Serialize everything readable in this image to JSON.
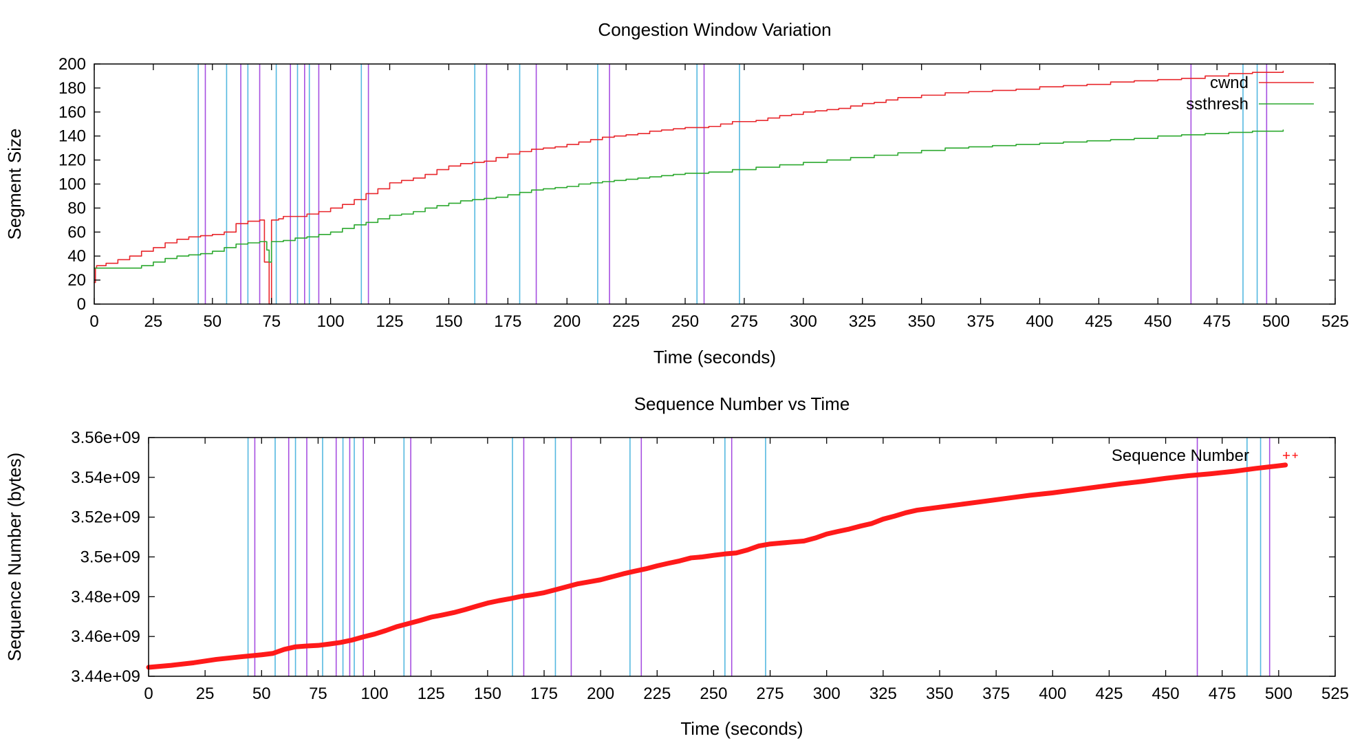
{
  "chart_data": [
    {
      "type": "line",
      "title": "Congestion Window Variation",
      "xlabel": "Time (seconds)",
      "ylabel": "Segment Size",
      "xlim": [
        0,
        525
      ],
      "ylim": [
        0,
        200
      ],
      "xticks": [
        "0",
        "25",
        "50",
        "75",
        "100",
        "125",
        "150",
        "175",
        "200",
        "225",
        "250",
        "275",
        "300",
        "325",
        "350",
        "375",
        "400",
        "425",
        "450",
        "475",
        "500",
        "525"
      ],
      "yticks": [
        "0",
        "20",
        "40",
        "60",
        "80",
        "100",
        "120",
        "140",
        "160",
        "180",
        "200"
      ],
      "grid": false,
      "legend_position": "top-right",
      "series": [
        {
          "name": "cwnd",
          "color": "#e8262b",
          "x": [
            0,
            0.5,
            1,
            5,
            10,
            15,
            20,
            25,
            30,
            35,
            40,
            45,
            50,
            55,
            60,
            65,
            70,
            72,
            74,
            75,
            78,
            80,
            85,
            90,
            95,
            100,
            105,
            110,
            115,
            120,
            125,
            130,
            135,
            140,
            145,
            150,
            155,
            160,
            165,
            170,
            175,
            180,
            185,
            190,
            195,
            200,
            205,
            210,
            215,
            220,
            225,
            230,
            235,
            240,
            245,
            250,
            255,
            260,
            265,
            270,
            275,
            280,
            285,
            290,
            295,
            300,
            305,
            310,
            315,
            320,
            325,
            330,
            335,
            340,
            350,
            360,
            370,
            380,
            390,
            400,
            410,
            420,
            430,
            440,
            450,
            460,
            470,
            480,
            490,
            503
          ],
          "y": [
            18,
            30,
            32,
            34,
            37,
            40,
            44,
            47,
            51,
            54,
            56,
            57,
            58,
            60,
            67,
            69,
            70,
            35,
            0,
            70,
            71,
            73,
            73,
            75,
            77,
            80,
            83,
            87,
            92,
            96,
            101,
            103,
            105,
            108,
            112,
            115,
            117,
            118,
            119,
            122,
            125,
            127,
            129,
            130,
            131,
            133,
            135,
            137,
            139,
            140,
            141,
            142,
            144,
            145,
            146,
            147,
            147,
            148,
            150,
            152,
            152,
            153,
            155,
            157,
            158,
            160,
            161,
            162,
            163,
            165,
            167,
            168,
            170,
            172,
            174,
            176,
            177,
            178,
            179,
            181,
            182,
            183,
            185,
            186,
            187,
            188,
            190,
            192,
            193,
            194
          ]
        },
        {
          "name": "ssthresh",
          "color": "#2ba82e",
          "x": [
            0,
            5,
            10,
            15,
            20,
            25,
            30,
            35,
            40,
            45,
            50,
            55,
            60,
            65,
            70,
            73,
            74,
            75,
            80,
            85,
            90,
            95,
            100,
            105,
            110,
            115,
            120,
            125,
            130,
            135,
            140,
            145,
            150,
            155,
            160,
            165,
            170,
            175,
            180,
            185,
            190,
            195,
            200,
            205,
            210,
            215,
            220,
            225,
            230,
            235,
            240,
            245,
            250,
            260,
            270,
            280,
            290,
            300,
            310,
            320,
            330,
            340,
            350,
            360,
            370,
            380,
            390,
            400,
            410,
            420,
            430,
            440,
            450,
            460,
            470,
            480,
            490,
            503
          ],
          "y": [
            30,
            30,
            30,
            30,
            32,
            35,
            38,
            40,
            41,
            42,
            44,
            47,
            50,
            51,
            52,
            45,
            35,
            52,
            53,
            55,
            56,
            58,
            60,
            63,
            66,
            68,
            71,
            74,
            75,
            77,
            80,
            82,
            84,
            86,
            87,
            88,
            89,
            91,
            93,
            95,
            96,
            97,
            98,
            100,
            101,
            102,
            103,
            104,
            105,
            106,
            107,
            108,
            109,
            110,
            112,
            114,
            116,
            118,
            120,
            122,
            124,
            126,
            128,
            130,
            131,
            132,
            133,
            134,
            135,
            136,
            137,
            138,
            140,
            141,
            142,
            143,
            144,
            145
          ]
        }
      ],
      "vlines_cyan": [
        44,
        56,
        65,
        77,
        86,
        91,
        113,
        161,
        180,
        213,
        255,
        273,
        486,
        492
      ],
      "vlines_purple": [
        47,
        62,
        70,
        83,
        89,
        95,
        116,
        166,
        187,
        218,
        258,
        464,
        496
      ]
    },
    {
      "type": "scatter",
      "title": "Sequence Number vs Time",
      "xlabel": "Time (seconds)",
      "ylabel": "Sequence Number (bytes)",
      "xlim": [
        0,
        525
      ],
      "ylim": [
        3440000000.0,
        3560000000.0
      ],
      "xticks": [
        "0",
        "25",
        "50",
        "75",
        "100",
        "125",
        "150",
        "175",
        "200",
        "225",
        "250",
        "275",
        "300",
        "325",
        "350",
        "375",
        "400",
        "425",
        "450",
        "475",
        "500",
        "525"
      ],
      "yticks": [
        "3.44e+09",
        "3.46e+09",
        "3.48e+09",
        "3.5e+09",
        "3.52e+09",
        "3.54e+09",
        "3.56e+09"
      ],
      "grid": false,
      "legend_position": "top-right",
      "series": [
        {
          "name": "Sequence Number",
          "color": "#ff1a1a",
          "x": [
            0,
            10,
            20,
            30,
            40,
            50,
            55,
            60,
            65,
            70,
            75,
            80,
            85,
            90,
            95,
            100,
            105,
            110,
            115,
            120,
            125,
            130,
            135,
            140,
            145,
            150,
            155,
            160,
            165,
            170,
            175,
            180,
            185,
            190,
            195,
            200,
            205,
            210,
            215,
            220,
            225,
            230,
            235,
            240,
            245,
            250,
            255,
            260,
            265,
            270,
            275,
            280,
            285,
            290,
            295,
            300,
            305,
            310,
            315,
            320,
            325,
            330,
            335,
            340,
            350,
            360,
            370,
            380,
            390,
            400,
            410,
            420,
            430,
            440,
            450,
            460,
            470,
            480,
            490,
            500,
            503
          ],
          "y": [
            3444500000.0,
            3445500000.0,
            3446800000.0,
            3448500000.0,
            3449700000.0,
            3450800000.0,
            3451500000.0,
            3453500000.0,
            3454800000.0,
            3455200000.0,
            3455500000.0,
            3456200000.0,
            3457000000.0,
            3458200000.0,
            3459800000.0,
            3461200000.0,
            3463000000.0,
            3465000000.0,
            3466500000.0,
            3468000000.0,
            3469700000.0,
            3470800000.0,
            3472000000.0,
            3473500000.0,
            3475200000.0,
            3476800000.0,
            3478000000.0,
            3479000000.0,
            3480200000.0,
            3481000000.0,
            3482000000.0,
            3483500000.0,
            3485000000.0,
            3486500000.0,
            3487500000.0,
            3488500000.0,
            3490000000.0,
            3491500000.0,
            3492800000.0,
            3494000000.0,
            3495500000.0,
            3496800000.0,
            3498000000.0,
            3499500000.0,
            3500000000.0,
            3500800000.0,
            3501500000.0,
            3502000000.0,
            3503500000.0,
            3505500000.0,
            3506500000.0,
            3507000000.0,
            3507500000.0,
            3508000000.0,
            3509500000.0,
            3511500000.0,
            3512800000.0,
            3514000000.0,
            3515500000.0,
            3516800000.0,
            3519000000.0,
            3520500000.0,
            3522200000.0,
            3523500000.0,
            3525000000.0,
            3526500000.0,
            3528000000.0,
            3529500000.0,
            3531000000.0,
            3532200000.0,
            3533700000.0,
            3535200000.0,
            3536700000.0,
            3538000000.0,
            3539500000.0,
            3540800000.0,
            3541800000.0,
            3543000000.0,
            3544500000.0,
            3545800000.0,
            3546200000.0
          ]
        }
      ],
      "vlines_cyan": [
        44,
        56,
        65,
        77,
        86,
        91,
        113,
        161,
        180,
        213,
        255,
        273,
        486,
        492
      ],
      "vlines_purple": [
        47,
        62,
        70,
        83,
        89,
        95,
        116,
        166,
        187,
        218,
        258,
        464,
        496
      ]
    }
  ]
}
